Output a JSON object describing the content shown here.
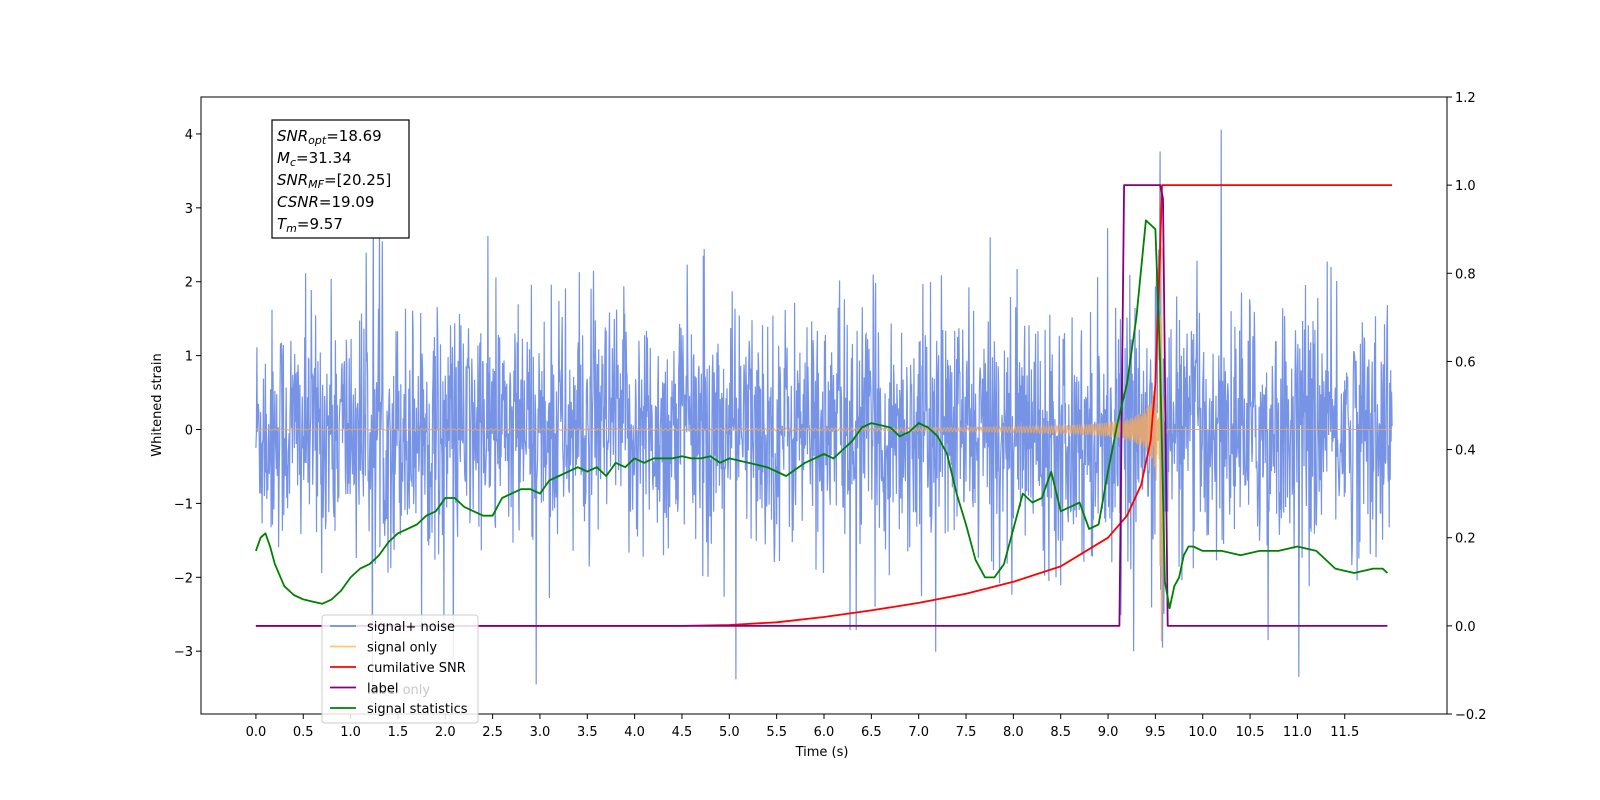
{
  "chart_data": {
    "type": "line",
    "xlabel": "Time (s)",
    "ylabel_left": "Whitened strain",
    "xlim": [
      -0.58,
      12.58
    ],
    "ylim_left": [
      -3.85,
      4.5
    ],
    "ylim_right": [
      -0.2,
      1.2
    ],
    "x_ticks": [
      "0.0",
      "0.5",
      "1.0",
      "1.5",
      "2.0",
      "2.5",
      "3.0",
      "3.5",
      "4.0",
      "4.5",
      "5.0",
      "5.5",
      "6.0",
      "6.5",
      "7.0",
      "7.5",
      "8.0",
      "8.5",
      "9.0",
      "9.5",
      "10.0",
      "10.5",
      "11.0",
      "11.5"
    ],
    "y_ticks_left": [
      "4",
      "3",
      "2",
      "1",
      "0",
      "−1",
      "−2",
      "−3"
    ],
    "y_ticks_right": [
      "1.2",
      "1.0",
      "0.8",
      "0.6",
      "0.4",
      "0.2",
      "0.0",
      "−0.2"
    ],
    "annotation": {
      "lines": [
        {
          "sym": "SNR",
          "sub": "opt",
          "val": "=18.69"
        },
        {
          "sym": "M",
          "sub": "c",
          "val": "=31.34"
        },
        {
          "sym": "SNR",
          "sub": "MF",
          "val": "=[20.25]"
        },
        {
          "sym": "CSNR",
          "sub": "",
          "val": "=19.09"
        },
        {
          "sym": "T",
          "sub": "m",
          "val": "=9.57"
        }
      ]
    },
    "legend": {
      "position": "lower-left",
      "entries": [
        {
          "label": "signal+ noise",
          "color": "#6f8de5"
        },
        {
          "label": "signal only",
          "color": "#ffc870"
        },
        {
          "label": "cumilative SNR",
          "color": "#ff0000"
        },
        {
          "label": "label",
          "color": "#800080"
        },
        {
          "label": "signal statistics",
          "color": "#008000"
        }
      ],
      "overlap_text": "label only"
    },
    "series": [
      {
        "name": "signal+ noise",
        "axis": "left",
        "color": "#6f8de5",
        "kind": "noise",
        "x_range": [
          0.0,
          12.0
        ],
        "amplitude_range": [
          -3.45,
          4.1
        ],
        "spike_x": 9.55
      },
      {
        "name": "signal only",
        "axis": "left",
        "color": "#e8a86b",
        "kind": "chirp",
        "x_range": [
          0.0,
          12.0
        ],
        "merger_x": 9.57,
        "peak_amplitude": 3.0
      },
      {
        "name": "cumilative SNR",
        "axis": "right",
        "color": "#ff0000",
        "x": [
          0,
          4.5,
          5.0,
          5.5,
          6.0,
          6.5,
          7.0,
          7.5,
          8.0,
          8.5,
          9.0,
          9.2,
          9.35,
          9.45,
          9.5,
          9.55,
          9.57,
          9.6,
          12.0
        ],
        "y": [
          0.0,
          0.0,
          0.002,
          0.008,
          0.02,
          0.035,
          0.052,
          0.073,
          0.1,
          0.135,
          0.2,
          0.25,
          0.32,
          0.42,
          0.55,
          0.85,
          1.0,
          1.0,
          1.0
        ]
      },
      {
        "name": "label",
        "axis": "right",
        "color": "#800080",
        "x": [
          0,
          9.12,
          9.17,
          9.55,
          9.58,
          9.63,
          11.95
        ],
        "y": [
          0,
          0,
          1,
          1,
          0.97,
          0,
          0
        ]
      },
      {
        "name": "signal statistics",
        "axis": "right",
        "color": "#008000",
        "x": [
          0.0,
          0.05,
          0.1,
          0.15,
          0.2,
          0.3,
          0.4,
          0.5,
          0.6,
          0.7,
          0.8,
          0.9,
          1.0,
          1.1,
          1.2,
          1.3,
          1.4,
          1.5,
          1.6,
          1.7,
          1.8,
          1.9,
          2.0,
          2.1,
          2.2,
          2.3,
          2.4,
          2.5,
          2.6,
          2.7,
          2.8,
          2.9,
          3.0,
          3.1,
          3.2,
          3.3,
          3.4,
          3.5,
          3.6,
          3.7,
          3.8,
          3.9,
          4.0,
          4.1,
          4.2,
          4.3,
          4.4,
          4.5,
          4.6,
          4.7,
          4.8,
          4.9,
          5.0,
          5.2,
          5.4,
          5.6,
          5.8,
          6.0,
          6.1,
          6.2,
          6.3,
          6.4,
          6.5,
          6.6,
          6.7,
          6.8,
          6.9,
          7.0,
          7.1,
          7.2,
          7.3,
          7.4,
          7.5,
          7.6,
          7.7,
          7.8,
          7.9,
          8.0,
          8.1,
          8.2,
          8.3,
          8.4,
          8.5,
          8.6,
          8.7,
          8.8,
          8.9,
          9.0,
          9.1,
          9.2,
          9.3,
          9.4,
          9.5,
          9.55,
          9.6,
          9.65,
          9.7,
          9.75,
          9.8,
          9.85,
          9.9,
          10.0,
          10.2,
          10.4,
          10.6,
          10.8,
          11.0,
          11.2,
          11.4,
          11.6,
          11.8,
          11.9,
          11.95
        ],
        "y": [
          0.17,
          0.2,
          0.21,
          0.18,
          0.14,
          0.09,
          0.07,
          0.06,
          0.055,
          0.05,
          0.06,
          0.08,
          0.11,
          0.13,
          0.14,
          0.16,
          0.19,
          0.21,
          0.22,
          0.23,
          0.25,
          0.26,
          0.29,
          0.29,
          0.27,
          0.26,
          0.25,
          0.25,
          0.29,
          0.3,
          0.31,
          0.31,
          0.3,
          0.33,
          0.34,
          0.35,
          0.36,
          0.35,
          0.36,
          0.34,
          0.37,
          0.36,
          0.38,
          0.37,
          0.38,
          0.38,
          0.38,
          0.385,
          0.38,
          0.38,
          0.385,
          0.37,
          0.38,
          0.37,
          0.36,
          0.34,
          0.37,
          0.39,
          0.38,
          0.4,
          0.42,
          0.45,
          0.46,
          0.455,
          0.45,
          0.43,
          0.44,
          0.46,
          0.45,
          0.43,
          0.39,
          0.3,
          0.23,
          0.15,
          0.11,
          0.11,
          0.14,
          0.22,
          0.3,
          0.28,
          0.29,
          0.35,
          0.26,
          0.27,
          0.28,
          0.22,
          0.23,
          0.35,
          0.46,
          0.55,
          0.7,
          0.92,
          0.9,
          0.6,
          0.1,
          0.04,
          0.09,
          0.11,
          0.16,
          0.18,
          0.18,
          0.17,
          0.17,
          0.16,
          0.17,
          0.17,
          0.18,
          0.17,
          0.13,
          0.12,
          0.13,
          0.13,
          0.12
        ]
      }
    ]
  }
}
